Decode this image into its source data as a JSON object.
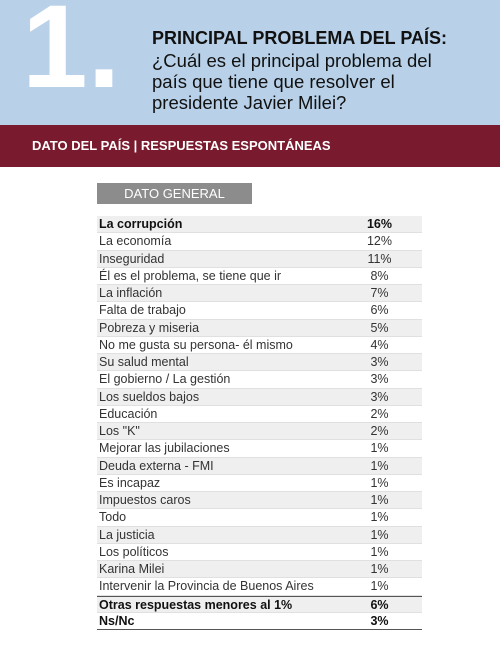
{
  "header": {
    "number": "1.",
    "title": "PRINCIPAL PROBLEMA DEL PAÍS:",
    "question": "¿Cuál es el principal problema del país que tiene que resolver el presidente Javier Milei?"
  },
  "band": {
    "text": "DATO DEL PAÍS | RESPUESTAS ESPONTÁNEAS"
  },
  "table": {
    "label": "DATO GENERAL",
    "rows": [
      [
        "La corrupción",
        "16%"
      ],
      [
        "La economía",
        "12%"
      ],
      [
        "Inseguridad",
        "11%"
      ],
      [
        "Él es el problema, se tiene que ir",
        "8%"
      ],
      [
        "La inflación",
        "7%"
      ],
      [
        "Falta de trabajo",
        "6%"
      ],
      [
        "Pobreza y miseria",
        "5%"
      ],
      [
        "No me gusta su persona- él mismo",
        "4%"
      ],
      [
        "Su salud mental",
        "3%"
      ],
      [
        "El gobierno / La gestión",
        "3%"
      ],
      [
        "Los sueldos bajos",
        "3%"
      ],
      [
        "Educación",
        "2%"
      ],
      [
        "Los \"K\"",
        "2%"
      ],
      [
        "Mejorar las jubilaciones",
        "1%"
      ],
      [
        "Deuda externa - FMI",
        "1%"
      ],
      [
        "Es incapaz",
        "1%"
      ],
      [
        "Impuestos caros",
        "1%"
      ],
      [
        "Todo",
        "1%"
      ],
      [
        "La justicia",
        "1%"
      ],
      [
        "Los políticos",
        "1%"
      ],
      [
        "Karina Milei",
        "1%"
      ],
      [
        "Intervenir la Provincia de Buenos Aires",
        "1%"
      ],
      [
        "Otras respuestas menores al 1%",
        "6%"
      ],
      [
        "Ns/Nc",
        "3%"
      ]
    ]
  }
}
